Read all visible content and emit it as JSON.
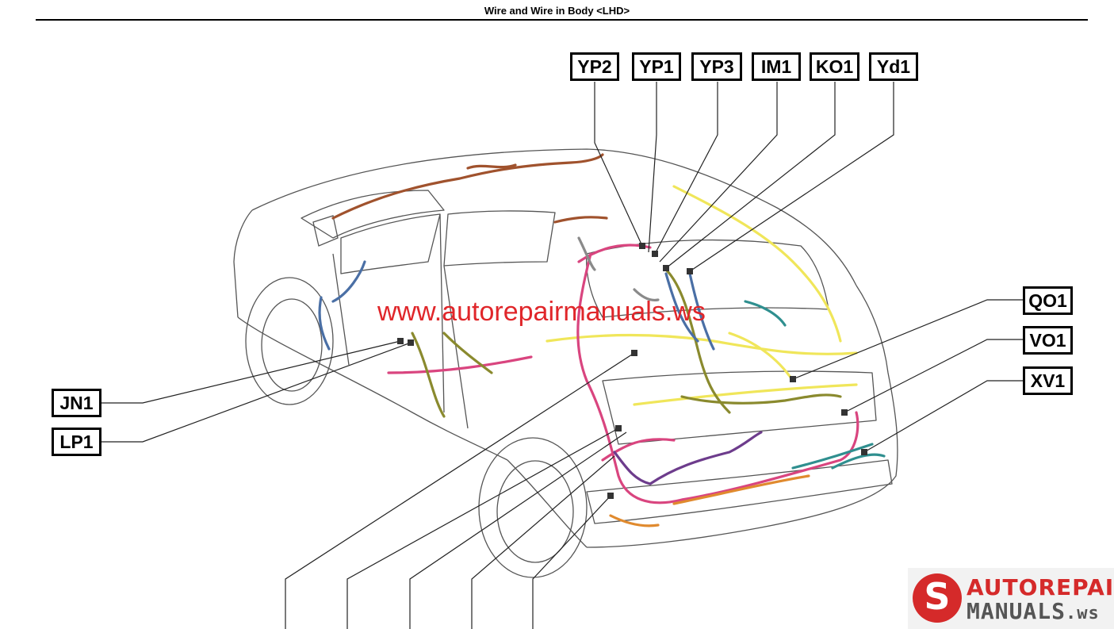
{
  "header": {
    "title": "Wire and Wire in Body <LHD>"
  },
  "diagram": {
    "labels": {
      "yp2": "YP2",
      "yp1": "YP1",
      "yp3": "YP3",
      "im1": "IM1",
      "ko1": "KO1",
      "yd1": "Yd1",
      "qo1": "QO1",
      "vo1": "VO1",
      "xv1": "XV1",
      "jn1": "JN1",
      "lp1": "LP1"
    },
    "wire_colors": {
      "yellow": "#f0e65a",
      "pink": "#d9457f",
      "olive": "#8a8a2e",
      "blue": "#4a6fa5",
      "purple": "#6d3c8c",
      "teal": "#2f8f8f",
      "orange": "#e08a2e",
      "brown": "#a0522d",
      "gray": "#8a8a8a"
    }
  },
  "watermark": {
    "text": "www.autorepairmanuals.ws"
  },
  "logo": {
    "top": "AUTOREPAIR",
    "bottom": "MANUALS",
    "suffix": ".ws",
    "icon": "S"
  }
}
